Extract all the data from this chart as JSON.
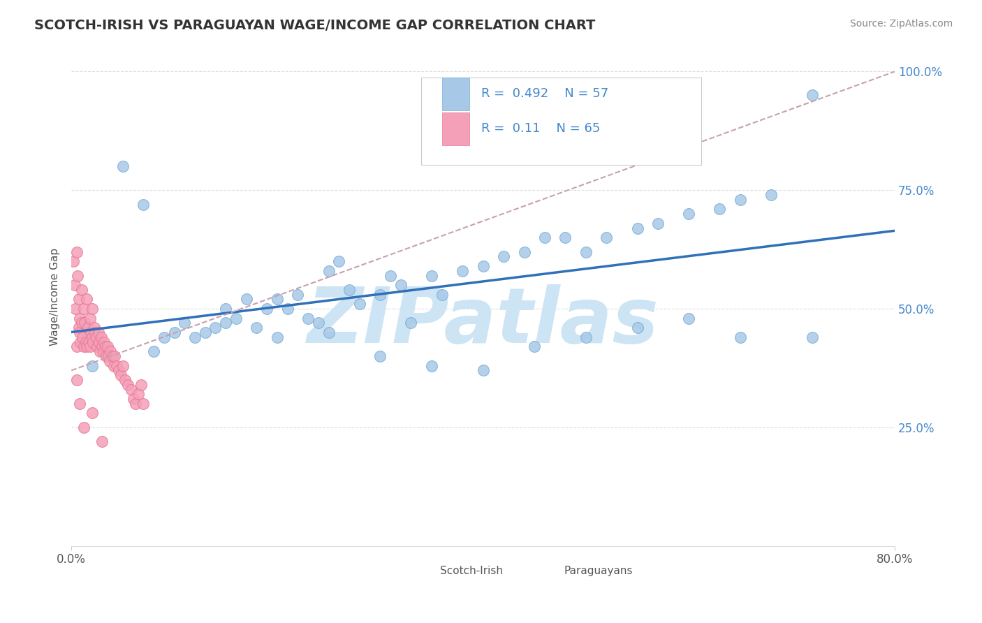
{
  "title": "SCOTCH-IRISH VS PARAGUAYAN WAGE/INCOME GAP CORRELATION CHART",
  "source": "Source: ZipAtlas.com",
  "ylabel": "Wage/Income Gap",
  "xmin": 0.0,
  "xmax": 0.8,
  "ymin": 0.0,
  "ymax": 1.05,
  "blue_R": 0.492,
  "blue_N": 57,
  "pink_R": 0.11,
  "pink_N": 65,
  "blue_color": "#a8c8e8",
  "blue_edge_color": "#7bafd4",
  "pink_color": "#f4a0b8",
  "pink_edge_color": "#e87898",
  "blue_line_color": "#3070b8",
  "gray_dash_color": "#c8a0b0",
  "watermark": "ZIPatlas",
  "watermark_color": "#cce4f4",
  "legend_blue_label": "Scotch-Irish",
  "legend_pink_label": "Paraguayans",
  "yticks": [
    0.25,
    0.5,
    0.75,
    1.0
  ],
  "ytick_labels": [
    "25.0%",
    "50.0%",
    "75.0%",
    "100.0%"
  ],
  "xtick_labels": [
    "0.0%",
    "80.0%"
  ],
  "right_tick_color": "#4488cc",
  "axis_color": "#bbbbbb",
  "text_color": "#555555",
  "title_color": "#333333",
  "source_color": "#888888"
}
